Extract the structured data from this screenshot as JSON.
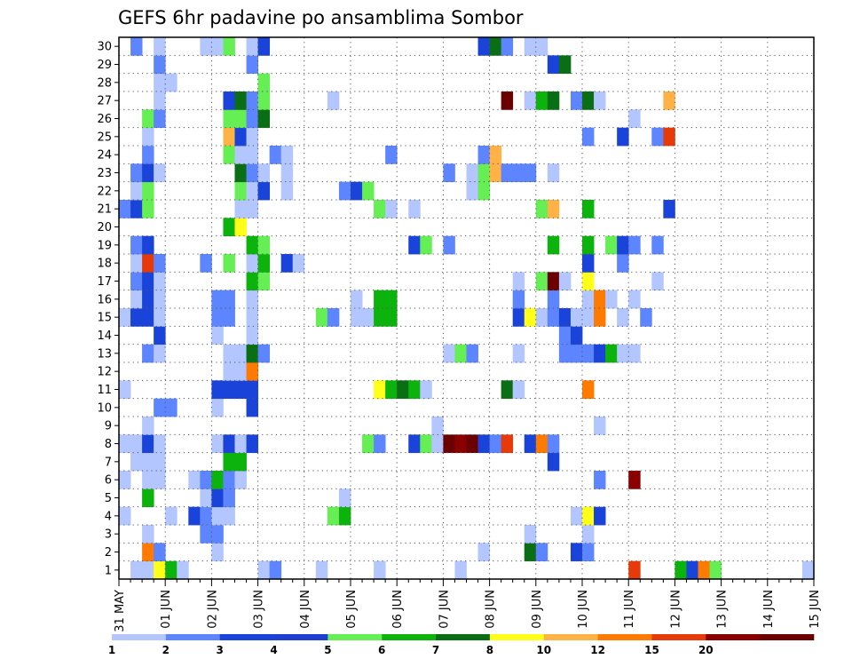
{
  "chart_data": {
    "type": "heatmap",
    "title": "GEFS 6hr padavine po ansamblima Sombor",
    "xlabel": "",
    "ylabel": "",
    "grid": true,
    "x_tick_labels": [
      "31 MAY",
      "01 JUN",
      "02 JUN",
      "03 JUN",
      "04 JUN",
      "05 JUN",
      "06 JUN",
      "07 JUN",
      "08 JUN",
      "09 JUN",
      "10 JUN",
      "11 JUN",
      "12 JUN",
      "13 JUN",
      "14 JUN",
      "15 JUN"
    ],
    "y_range": [
      1,
      30
    ],
    "x_range_days": [
      0,
      15
    ],
    "time_step_hours": 6,
    "colorbar": {
      "labels": [
        "1",
        "2",
        "3",
        "4",
        "5",
        "6",
        "7",
        "8",
        "10",
        "12",
        "15",
        "20"
      ],
      "colors": [
        "#b3c6ff",
        "#5c85ff",
        "#1a44d9",
        "#1f3fd1",
        "#66ee55",
        "#0db30d",
        "#0a6e14",
        "#ffff1a",
        "#ffb347",
        "#ff7a00",
        "#e63a0a",
        "#8a0000",
        "#6b0000"
      ]
    },
    "cells": [
      [
        1,
        1,
        0
      ],
      [
        1,
        2,
        0
      ],
      [
        1,
        3,
        7
      ],
      [
        1,
        4,
        5
      ],
      [
        1,
        5,
        0
      ],
      [
        1,
        12,
        0
      ],
      [
        1,
        13,
        1
      ],
      [
        1,
        17,
        0
      ],
      [
        1,
        22,
        0
      ],
      [
        1,
        29,
        0
      ],
      [
        1,
        44,
        10
      ],
      [
        1,
        48,
        5
      ],
      [
        1,
        49,
        2
      ],
      [
        1,
        50,
        9
      ],
      [
        1,
        51,
        4
      ],
      [
        1,
        59,
        0
      ],
      [
        2,
        2,
        9
      ],
      [
        2,
        3,
        1
      ],
      [
        2,
        8,
        0
      ],
      [
        2,
        31,
        0
      ],
      [
        2,
        35,
        6
      ],
      [
        2,
        36,
        1
      ],
      [
        2,
        39,
        2
      ],
      [
        2,
        40,
        1
      ],
      [
        3,
        2,
        0
      ],
      [
        3,
        7,
        1
      ],
      [
        3,
        8,
        1
      ],
      [
        3,
        35,
        0
      ],
      [
        3,
        40,
        0
      ],
      [
        4,
        0,
        0
      ],
      [
        4,
        4,
        0
      ],
      [
        4,
        6,
        2
      ],
      [
        4,
        7,
        1
      ],
      [
        4,
        8,
        0
      ],
      [
        4,
        9,
        0
      ],
      [
        4,
        18,
        4
      ],
      [
        4,
        19,
        5
      ],
      [
        4,
        39,
        0
      ],
      [
        4,
        40,
        7
      ],
      [
        4,
        41,
        2
      ],
      [
        5,
        2,
        5
      ],
      [
        5,
        7,
        0
      ],
      [
        5,
        8,
        2
      ],
      [
        5,
        9,
        1
      ],
      [
        5,
        19,
        0
      ],
      [
        6,
        0,
        0
      ],
      [
        6,
        2,
        0
      ],
      [
        6,
        3,
        0
      ],
      [
        6,
        6,
        0
      ],
      [
        6,
        7,
        1
      ],
      [
        6,
        8,
        5
      ],
      [
        6,
        9,
        1
      ],
      [
        6,
        10,
        0
      ],
      [
        6,
        41,
        1
      ],
      [
        6,
        44,
        11
      ],
      [
        7,
        1,
        0
      ],
      [
        7,
        2,
        0
      ],
      [
        7,
        3,
        0
      ],
      [
        7,
        9,
        5
      ],
      [
        7,
        10,
        5
      ],
      [
        7,
        37,
        2
      ],
      [
        8,
        0,
        0
      ],
      [
        8,
        1,
        0
      ],
      [
        8,
        2,
        2
      ],
      [
        8,
        3,
        0
      ],
      [
        8,
        8,
        0
      ],
      [
        8,
        9,
        2
      ],
      [
        8,
        10,
        0
      ],
      [
        8,
        11,
        2
      ],
      [
        8,
        21,
        4
      ],
      [
        8,
        22,
        1
      ],
      [
        8,
        25,
        2
      ],
      [
        8,
        26,
        4
      ],
      [
        8,
        27,
        0
      ],
      [
        8,
        28,
        12
      ],
      [
        8,
        29,
        11
      ],
      [
        8,
        30,
        12
      ],
      [
        8,
        31,
        2
      ],
      [
        8,
        32,
        1
      ],
      [
        8,
        33,
        10
      ],
      [
        8,
        35,
        2
      ],
      [
        8,
        36,
        9
      ],
      [
        8,
        37,
        1
      ],
      [
        9,
        2,
        0
      ],
      [
        9,
        27,
        0
      ],
      [
        9,
        41,
        0
      ],
      [
        10,
        3,
        1
      ],
      [
        10,
        4,
        1
      ],
      [
        10,
        8,
        0
      ],
      [
        10,
        11,
        2
      ],
      [
        11,
        0,
        0
      ],
      [
        11,
        8,
        2
      ],
      [
        11,
        9,
        2
      ],
      [
        11,
        10,
        2
      ],
      [
        11,
        11,
        2
      ],
      [
        11,
        22,
        7
      ],
      [
        11,
        23,
        5
      ],
      [
        11,
        24,
        6
      ],
      [
        11,
        25,
        5
      ],
      [
        11,
        26,
        0
      ],
      [
        11,
        33,
        6
      ],
      [
        11,
        34,
        0
      ],
      [
        11,
        40,
        9
      ],
      [
        12,
        9,
        0
      ],
      [
        12,
        10,
        0
      ],
      [
        12,
        11,
        9
      ],
      [
        13,
        2,
        1
      ],
      [
        13,
        3,
        0
      ],
      [
        13,
        9,
        0
      ],
      [
        13,
        10,
        0
      ],
      [
        13,
        11,
        6
      ],
      [
        13,
        12,
        1
      ],
      [
        13,
        28,
        0
      ],
      [
        13,
        29,
        4
      ],
      [
        13,
        30,
        1
      ],
      [
        13,
        34,
        0
      ],
      [
        13,
        38,
        1
      ],
      [
        13,
        39,
        1
      ],
      [
        13,
        40,
        1
      ],
      [
        13,
        41,
        2
      ],
      [
        13,
        42,
        5
      ],
      [
        13,
        43,
        0
      ],
      [
        13,
        44,
        0
      ],
      [
        14,
        3,
        2
      ],
      [
        14,
        8,
        0
      ],
      [
        14,
        11,
        0
      ],
      [
        14,
        38,
        1
      ],
      [
        14,
        39,
        2
      ],
      [
        15,
        0,
        0
      ],
      [
        15,
        1,
        2
      ],
      [
        15,
        2,
        2
      ],
      [
        15,
        3,
        0
      ],
      [
        15,
        8,
        1
      ],
      [
        15,
        9,
        1
      ],
      [
        15,
        11,
        0
      ],
      [
        15,
        17,
        4
      ],
      [
        15,
        18,
        1
      ],
      [
        15,
        20,
        0
      ],
      [
        15,
        21,
        0
      ],
      [
        15,
        22,
        5
      ],
      [
        15,
        23,
        5
      ],
      [
        15,
        34,
        2
      ],
      [
        15,
        35,
        7
      ],
      [
        15,
        36,
        0
      ],
      [
        15,
        37,
        1
      ],
      [
        15,
        38,
        2
      ],
      [
        15,
        39,
        0
      ],
      [
        15,
        40,
        0
      ],
      [
        15,
        41,
        9
      ],
      [
        15,
        43,
        0
      ],
      [
        15,
        45,
        1
      ],
      [
        16,
        1,
        0
      ],
      [
        16,
        2,
        2
      ],
      [
        16,
        3,
        0
      ],
      [
        16,
        8,
        1
      ],
      [
        16,
        9,
        1
      ],
      [
        16,
        11,
        0
      ],
      [
        16,
        20,
        0
      ],
      [
        16,
        22,
        5
      ],
      [
        16,
        23,
        5
      ],
      [
        16,
        34,
        1
      ],
      [
        16,
        37,
        1
      ],
      [
        16,
        40,
        0
      ],
      [
        16,
        41,
        9
      ],
      [
        16,
        42,
        0
      ],
      [
        16,
        44,
        0
      ],
      [
        17,
        1,
        1
      ],
      [
        17,
        2,
        2
      ],
      [
        17,
        3,
        0
      ],
      [
        17,
        11,
        5
      ],
      [
        17,
        12,
        4
      ],
      [
        17,
        34,
        0
      ],
      [
        17,
        36,
        4
      ],
      [
        17,
        37,
        12
      ],
      [
        17,
        38,
        0
      ],
      [
        17,
        40,
        7
      ],
      [
        17,
        46,
        0
      ],
      [
        18,
        1,
        0
      ],
      [
        18,
        2,
        10
      ],
      [
        18,
        3,
        1
      ],
      [
        18,
        7,
        1
      ],
      [
        18,
        9,
        4
      ],
      [
        18,
        11,
        0
      ],
      [
        18,
        12,
        5
      ],
      [
        18,
        14,
        2
      ],
      [
        18,
        15,
        0
      ],
      [
        18,
        40,
        2
      ],
      [
        18,
        43,
        1
      ],
      [
        19,
        1,
        1
      ],
      [
        19,
        2,
        2
      ],
      [
        19,
        11,
        5
      ],
      [
        19,
        12,
        4
      ],
      [
        19,
        25,
        2
      ],
      [
        19,
        26,
        4
      ],
      [
        19,
        28,
        1
      ],
      [
        19,
        37,
        5
      ],
      [
        19,
        40,
        5
      ],
      [
        19,
        42,
        4
      ],
      [
        19,
        43,
        2
      ],
      [
        19,
        44,
        1
      ],
      [
        19,
        46,
        1
      ],
      [
        20,
        9,
        5
      ],
      [
        20,
        10,
        7
      ],
      [
        21,
        0,
        1
      ],
      [
        21,
        1,
        2
      ],
      [
        21,
        2,
        4
      ],
      [
        21,
        10,
        0
      ],
      [
        21,
        11,
        0
      ],
      [
        21,
        22,
        4
      ],
      [
        21,
        23,
        0
      ],
      [
        21,
        25,
        0
      ],
      [
        21,
        36,
        4
      ],
      [
        21,
        37,
        8
      ],
      [
        21,
        40,
        5
      ],
      [
        21,
        47,
        2
      ],
      [
        22,
        1,
        0
      ],
      [
        22,
        2,
        4
      ],
      [
        22,
        10,
        4
      ],
      [
        22,
        11,
        0
      ],
      [
        22,
        12,
        2
      ],
      [
        22,
        14,
        0
      ],
      [
        22,
        19,
        1
      ],
      [
        22,
        20,
        2
      ],
      [
        22,
        21,
        4
      ],
      [
        22,
        30,
        0
      ],
      [
        22,
        31,
        4
      ],
      [
        23,
        1,
        1
      ],
      [
        23,
        2,
        2
      ],
      [
        23,
        3,
        0
      ],
      [
        23,
        10,
        6
      ],
      [
        23,
        11,
        1
      ],
      [
        23,
        12,
        0
      ],
      [
        23,
        14,
        0
      ],
      [
        23,
        28,
        1
      ],
      [
        23,
        30,
        0
      ],
      [
        23,
        31,
        4
      ],
      [
        23,
        32,
        8
      ],
      [
        23,
        33,
        1
      ],
      [
        23,
        34,
        1
      ],
      [
        23,
        35,
        1
      ],
      [
        23,
        37,
        0
      ],
      [
        24,
        2,
        1
      ],
      [
        24,
        9,
        4
      ],
      [
        24,
        10,
        0
      ],
      [
        24,
        11,
        0
      ],
      [
        24,
        13,
        1
      ],
      [
        24,
        14,
        0
      ],
      [
        24,
        23,
        1
      ],
      [
        24,
        31,
        1
      ],
      [
        24,
        32,
        8
      ],
      [
        25,
        2,
        0
      ],
      [
        25,
        9,
        8
      ],
      [
        25,
        10,
        2
      ],
      [
        25,
        11,
        0
      ],
      [
        25,
        40,
        1
      ],
      [
        25,
        43,
        2
      ],
      [
        25,
        46,
        1
      ],
      [
        25,
        47,
        10
      ],
      [
        26,
        2,
        4
      ],
      [
        26,
        3,
        1
      ],
      [
        26,
        9,
        4
      ],
      [
        26,
        10,
        4
      ],
      [
        26,
        11,
        1
      ],
      [
        26,
        12,
        6
      ],
      [
        26,
        44,
        0
      ],
      [
        27,
        3,
        0
      ],
      [
        27,
        9,
        2
      ],
      [
        27,
        10,
        6
      ],
      [
        27,
        11,
        1
      ],
      [
        27,
        12,
        4
      ],
      [
        27,
        18,
        0
      ],
      [
        27,
        33,
        12
      ],
      [
        27,
        35,
        0
      ],
      [
        27,
        36,
        5
      ],
      [
        27,
        37,
        6
      ],
      [
        27,
        39,
        1
      ],
      [
        27,
        40,
        6
      ],
      [
        27,
        41,
        0
      ],
      [
        27,
        47,
        8
      ],
      [
        28,
        3,
        0
      ],
      [
        28,
        4,
        0
      ],
      [
        28,
        12,
        4
      ],
      [
        29,
        3,
        1
      ],
      [
        29,
        11,
        1
      ],
      [
        29,
        37,
        2
      ],
      [
        29,
        38,
        6
      ],
      [
        30,
        1,
        1
      ],
      [
        30,
        3,
        0
      ],
      [
        30,
        7,
        0
      ],
      [
        30,
        8,
        0
      ],
      [
        30,
        9,
        4
      ],
      [
        30,
        11,
        0
      ],
      [
        30,
        12,
        2
      ],
      [
        30,
        31,
        2
      ],
      [
        30,
        32,
        6
      ],
      [
        30,
        33,
        1
      ],
      [
        30,
        35,
        0
      ],
      [
        30,
        36,
        0
      ]
    ]
  }
}
